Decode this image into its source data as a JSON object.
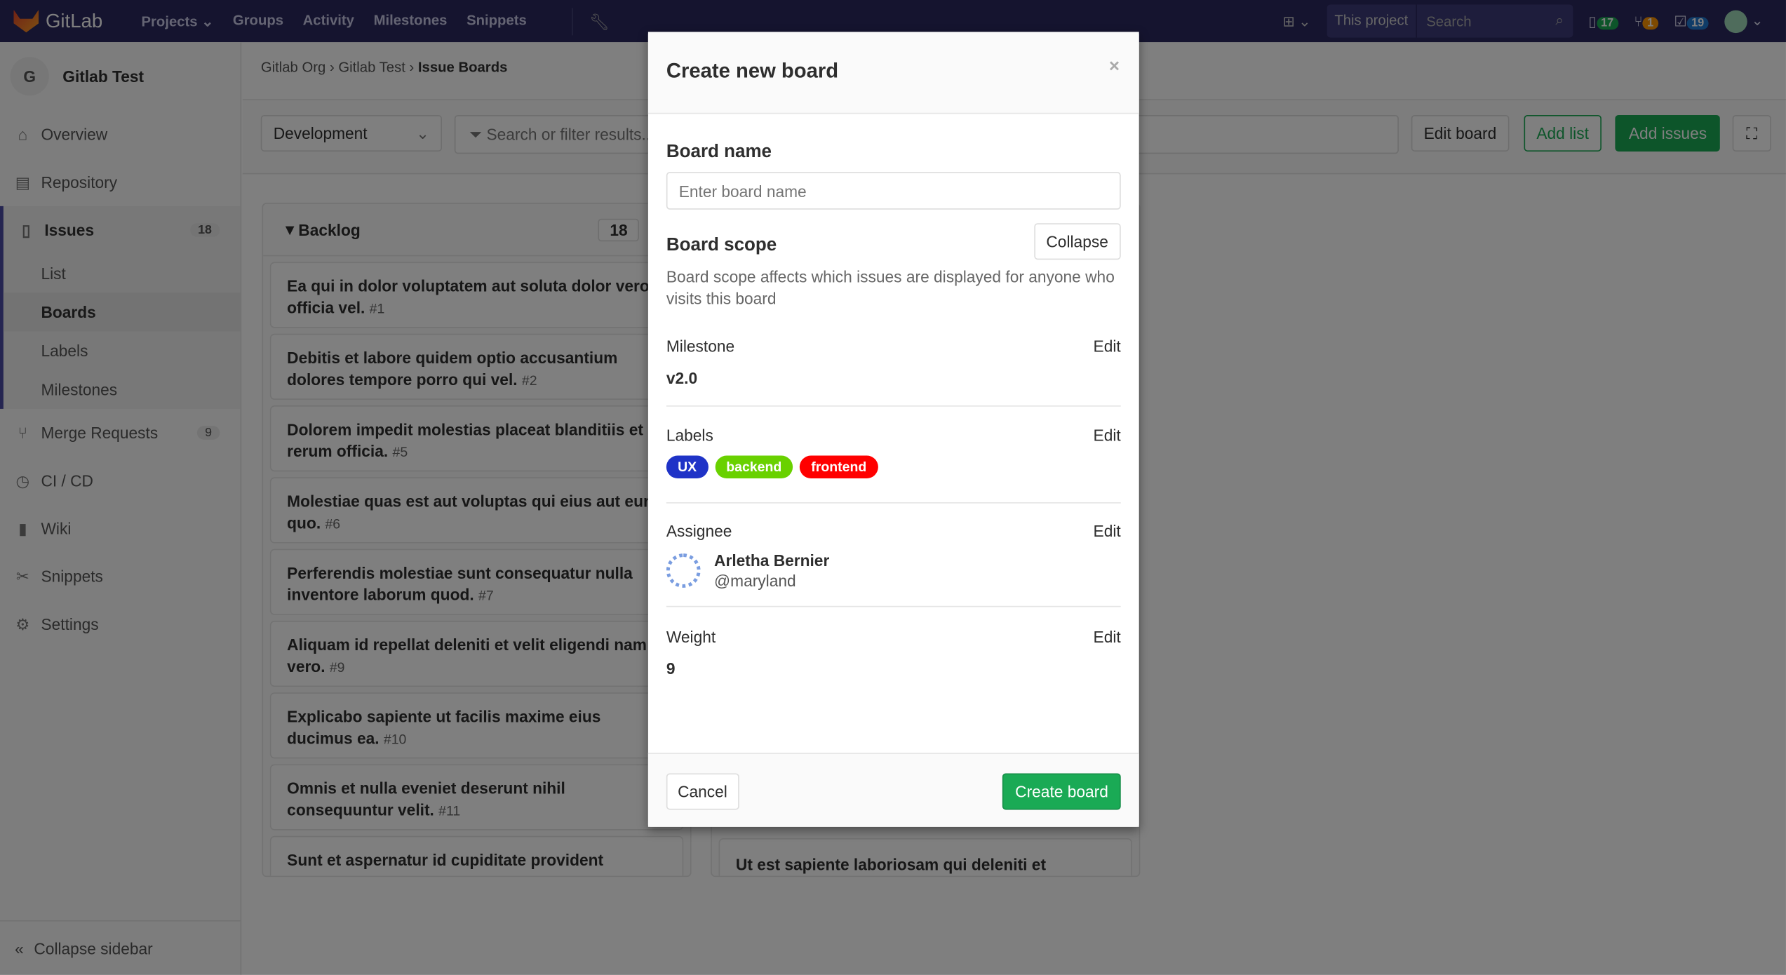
{
  "navbar": {
    "brand": "GitLab",
    "links": [
      "Projects",
      "Groups",
      "Activity",
      "Milestones",
      "Snippets"
    ],
    "search_scope": "This project",
    "search_placeholder": "Search",
    "issues_count": "17",
    "mr_count": "1",
    "todos_count": "19"
  },
  "sidebar": {
    "project_initial": "G",
    "project_name": "Gitlab Test",
    "items": [
      {
        "label": "Overview"
      },
      {
        "label": "Repository"
      },
      {
        "label": "Issues",
        "badge": "18"
      },
      {
        "label": "Merge Requests",
        "badge": "9"
      },
      {
        "label": "CI / CD"
      },
      {
        "label": "Wiki"
      },
      {
        "label": "Snippets"
      },
      {
        "label": "Settings"
      }
    ],
    "issues_sub": [
      "List",
      "Boards",
      "Labels",
      "Milestones"
    ],
    "collapse": "Collapse sidebar"
  },
  "breadcrumb": [
    "Gitlab Org",
    "Gitlab Test",
    "Issue Boards"
  ],
  "toolbar": {
    "board_select": "Development",
    "filter_placeholder": "Search or filter results...",
    "edit_board": "Edit board",
    "add_list": "Add list",
    "add_issues": "Add issues"
  },
  "backlog": {
    "title": "Backlog",
    "count": "18",
    "cards": [
      {
        "title": "Ea qui in dolor voluptatem aut soluta dolor vero officia vel.",
        "ref": "#1"
      },
      {
        "title": "Debitis et labore quidem optio accusantium dolores tempore porro qui vel.",
        "ref": "#2"
      },
      {
        "title": "Dolorem impedit molestias placeat blanditiis et rerum officia.",
        "ref": "#5"
      },
      {
        "title": "Molestiae quas est aut voluptas qui eius aut eum quo.",
        "ref": "#6"
      },
      {
        "title": "Perferendis molestiae sunt consequatur nulla inventore laborum quod.",
        "ref": "#7"
      },
      {
        "title": "Aliquam id repellat deleniti et velit eligendi nam vero.",
        "ref": "#9"
      },
      {
        "title": "Explicabo sapiente ut facilis maxime eius ducimus ea.",
        "ref": "#10"
      },
      {
        "title": "Omnis et nulla eveniet deserunt nihil consequuntur velit.",
        "ref": "#11"
      },
      {
        "title": "Sunt et aspernatur id cupiditate provident",
        "ref": ""
      }
    ]
  },
  "second_list": {
    "last_card": "Ut est sapiente laboriosam qui deleniti et"
  },
  "modal": {
    "title": "Create new board",
    "close": "×",
    "board_name_label": "Board name",
    "board_name_placeholder": "Enter board name",
    "scope_label": "Board scope",
    "collapse": "Collapse",
    "scope_desc": "Board scope affects which issues are displayed for anyone who visits this board",
    "milestone_label": "Milestone",
    "milestone_value": "v2.0",
    "labels_label": "Labels",
    "labels": [
      {
        "name": "UX",
        "color": "#1f33c7"
      },
      {
        "name": "backend",
        "color": "#69d100"
      },
      {
        "name": "frontend",
        "color": "#ff0000"
      }
    ],
    "assignee_label": "Assignee",
    "assignee_name": "Arletha Bernier",
    "assignee_username": "@maryland",
    "weight_label": "Weight",
    "weight_value": "9",
    "edit": "Edit",
    "cancel": "Cancel",
    "create": "Create board"
  }
}
